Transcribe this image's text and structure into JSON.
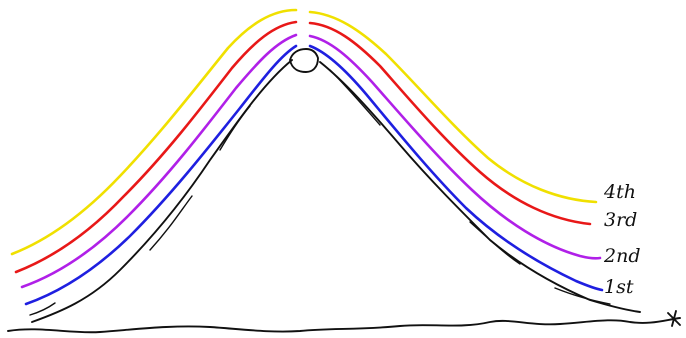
{
  "diagram": {
    "bands": [
      {
        "id": "first",
        "label": "1st",
        "color": "#1f1fe0"
      },
      {
        "id": "second",
        "label": "2nd",
        "color": "#b020e8"
      },
      {
        "id": "third",
        "label": "3rd",
        "color": "#e81818"
      },
      {
        "id": "fourth",
        "label": "4th",
        "color": "#f0e000"
      }
    ],
    "outline_color": "#111111"
  }
}
